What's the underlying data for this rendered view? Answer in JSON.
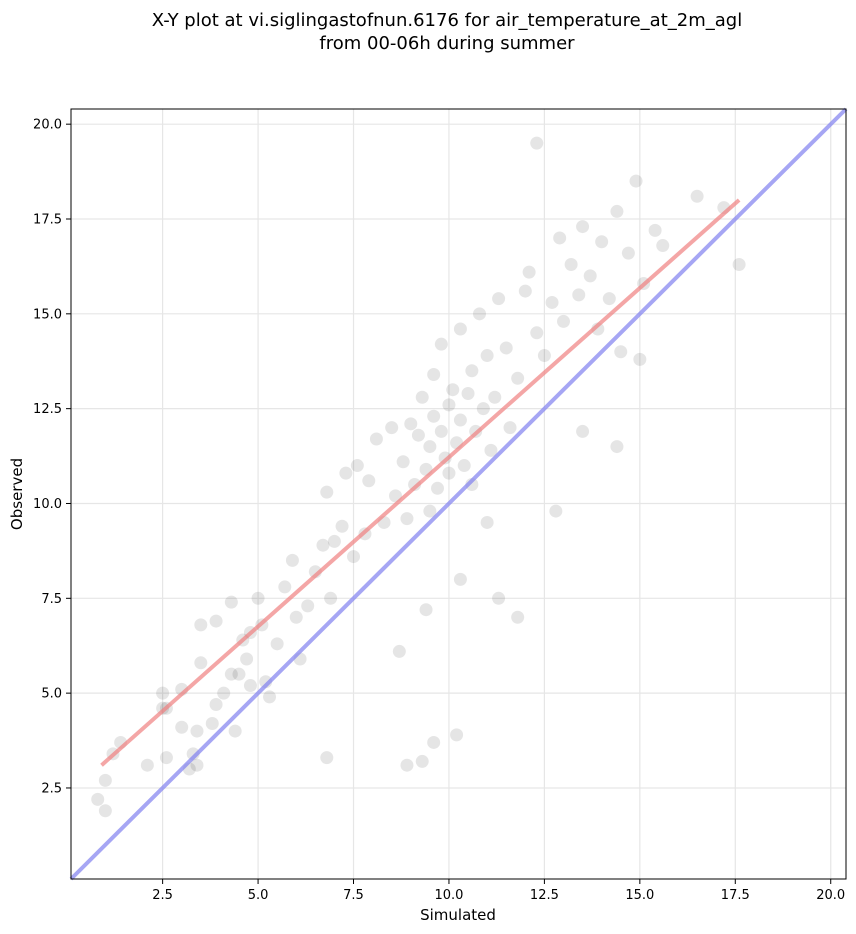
{
  "chart_data": {
    "type": "scatter",
    "title": "X-Y plot at vi.siglingastofnun.6176 for air_temperature_at_2m_agl",
    "subtitle": "from 00-06h during summer",
    "xlabel": "Simulated",
    "ylabel": "Observed",
    "xlim": [
      0.1,
      20.4
    ],
    "ylim": [
      0.1,
      20.4
    ],
    "xticks": [
      "2.5",
      "5.0",
      "7.5",
      "10.0",
      "12.5",
      "15.0",
      "17.5",
      "20.0"
    ],
    "yticks": [
      "2.5",
      "5.0",
      "7.5",
      "10.0",
      "12.5",
      "15.0",
      "17.5",
      "20.0"
    ],
    "grid": true,
    "colors": {
      "points": "#000000",
      "fit_line": "#f08080",
      "identity_line": "#8080f0"
    },
    "fit_line": {
      "x": [
        0.9,
        17.6
      ],
      "y": [
        3.1,
        18.0
      ]
    },
    "identity_line": {
      "x": [
        0.1,
        20.4
      ],
      "y": [
        0.1,
        20.4
      ]
    },
    "series": [
      {
        "x": [
          0.8,
          1.0,
          1.0,
          1.2,
          1.4,
          2.1,
          2.5,
          2.5,
          2.6,
          2.6,
          3.0,
          3.0,
          3.2,
          3.3,
          3.4,
          3.4,
          3.5,
          3.5,
          3.8,
          3.9,
          3.9,
          4.1,
          4.3,
          4.3,
          4.4,
          4.5,
          4.6,
          4.7,
          4.8,
          4.8,
          5.0,
          5.1,
          5.2,
          5.3,
          5.5,
          5.7,
          5.9,
          6.0,
          6.1,
          6.3,
          6.5,
          6.7,
          6.8,
          6.9,
          7.0,
          7.2,
          7.3,
          7.5,
          7.6,
          7.8,
          7.9,
          8.1,
          8.3,
          8.5,
          8.6,
          8.8,
          8.9,
          9.0,
          9.1,
          9.2,
          9.3,
          9.4,
          9.5,
          9.5,
          9.6,
          9.6,
          9.7,
          9.8,
          9.8,
          9.9,
          10.0,
          10.0,
          10.1,
          10.2,
          10.3,
          10.3,
          10.4,
          10.5,
          10.6,
          10.6,
          10.7,
          10.8,
          10.9,
          11.0,
          11.1,
          11.2,
          11.3,
          11.5,
          11.6,
          11.8,
          12.0,
          12.1,
          12.3,
          12.3,
          12.5,
          12.7,
          12.9,
          13.0,
          13.2,
          13.4,
          13.5,
          13.7,
          13.9,
          14.0,
          14.2,
          14.4,
          14.5,
          14.7,
          14.9,
          15.1,
          15.4,
          15.6,
          16.5,
          17.2,
          17.6,
          10.2,
          9.6,
          9.3,
          8.9,
          6.8,
          11.8,
          11.3,
          12.8,
          13.5,
          14.4,
          15.0,
          8.7,
          9.4,
          10.3,
          11.0
        ],
        "y": [
          2.2,
          1.9,
          2.7,
          3.4,
          3.7,
          3.1,
          4.6,
          5.0,
          3.3,
          4.6,
          5.1,
          4.1,
          3.0,
          3.4,
          4.0,
          3.1,
          5.8,
          6.8,
          4.2,
          4.7,
          6.9,
          5.0,
          5.5,
          7.4,
          4.0,
          5.5,
          6.4,
          5.9,
          5.2,
          6.6,
          7.5,
          6.8,
          5.3,
          4.9,
          6.3,
          7.8,
          8.5,
          7.0,
          5.9,
          7.3,
          8.2,
          8.9,
          10.3,
          7.5,
          9.0,
          9.4,
          10.8,
          8.6,
          11.0,
          9.2,
          10.6,
          11.7,
          9.5,
          12.0,
          10.2,
          11.1,
          9.6,
          12.1,
          10.5,
          11.8,
          12.8,
          10.9,
          9.8,
          11.5,
          12.3,
          13.4,
          10.4,
          11.9,
          14.2,
          11.2,
          12.6,
          10.8,
          13.0,
          11.6,
          12.2,
          14.6,
          11.0,
          12.9,
          13.5,
          10.5,
          11.9,
          15.0,
          12.5,
          13.9,
          11.4,
          12.8,
          15.4,
          14.1,
          12.0,
          13.3,
          15.6,
          16.1,
          14.5,
          19.5,
          13.9,
          15.3,
          17.0,
          14.8,
          16.3,
          15.5,
          17.3,
          16.0,
          14.6,
          16.9,
          15.4,
          17.7,
          14.0,
          16.6,
          18.5,
          15.8,
          17.2,
          16.8,
          18.1,
          17.8,
          16.3,
          3.9,
          3.7,
          3.2,
          3.1,
          3.3,
          7.0,
          7.5,
          9.8,
          11.9,
          11.5,
          13.8,
          6.1,
          7.2,
          8.0,
          9.5
        ]
      }
    ]
  }
}
